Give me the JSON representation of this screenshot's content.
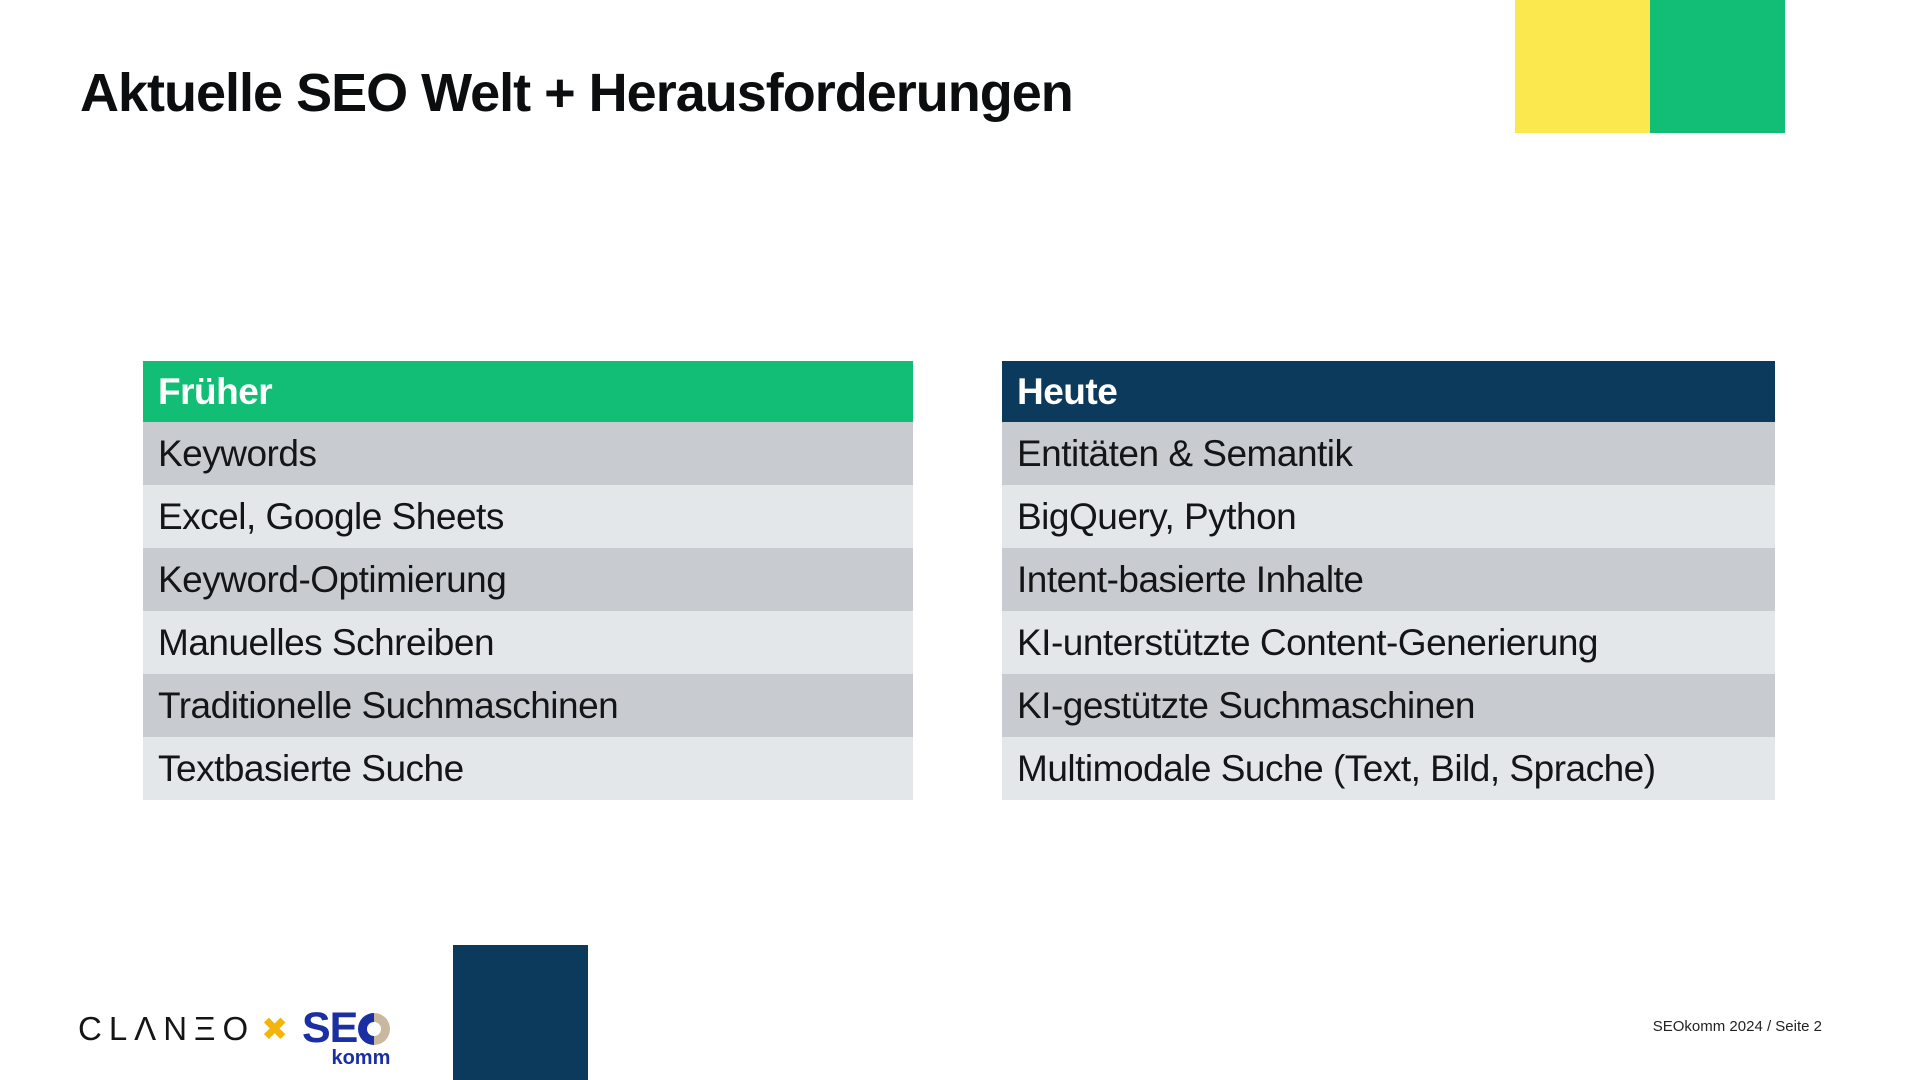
{
  "slide": {
    "title": "Aktuelle SEO Welt + Herausforderungen",
    "footer": "SEOkomm 2024 / Seite 2"
  },
  "colors": {
    "accent_green": "#12BE76",
    "accent_navy": "#0C3A5D",
    "accent_yellow": "#FBE74E",
    "row_dark": "#C8CCD1",
    "row_light": "#E4E7EA",
    "logo_blue": "#1B2FA3",
    "logo_gold": "#F3B40C",
    "logo_beige": "#C8B99E"
  },
  "tables": {
    "left": {
      "header": "Früher",
      "rows": [
        "Keywords",
        "Excel, Google Sheets",
        "Keyword-Optimierung",
        "Manuelles Schreiben",
        "Traditionelle Suchmaschinen",
        "Textbasierte Suche"
      ]
    },
    "right": {
      "header": "Heute",
      "rows": [
        "Entitäten & Semantik",
        "BigQuery, Python",
        "Intent-basierte Inhalte",
        "KI-unterstützte Content-Generierung",
        "KI-gestützte Suchmaschinen",
        "Multimodale Suche (Text, Bild, Sprache)"
      ]
    }
  },
  "logos": {
    "claneo_wordmark": "CLΛNΞO",
    "cross_glyph": "✖",
    "seokomm_main": "SE",
    "seokomm_sub": "komm"
  }
}
